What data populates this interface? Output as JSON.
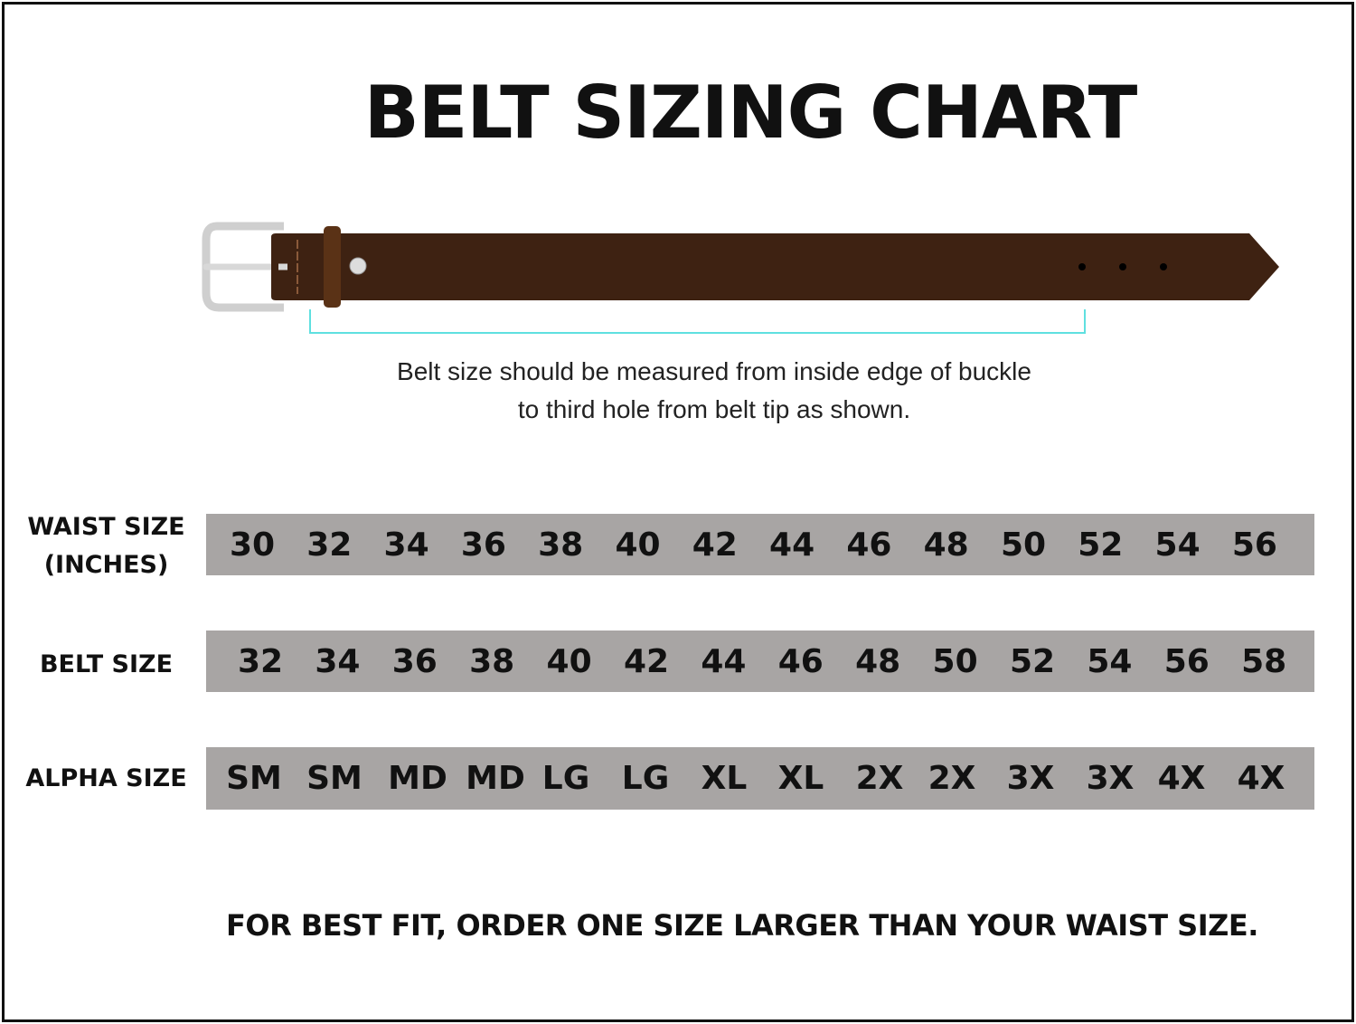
{
  "title": "BELT SIZING CHART",
  "note": [
    "Belt size should be measured from inside edge of buckle",
    "to third hole from belt tip as shown."
  ],
  "rows": [
    {
      "label": [
        "WAIST SIZE",
        "(INCHES)"
      ],
      "values": [
        "30",
        "32",
        "34",
        "36",
        "38",
        "40",
        "42",
        "44",
        "46",
        "48",
        "50",
        "52",
        "54",
        "56"
      ]
    },
    {
      "label": [
        "BELT SIZE"
      ],
      "values": [
        "32",
        "34",
        "36",
        "38",
        "40",
        "42",
        "44",
        "46",
        "48",
        "50",
        "52",
        "54",
        "56",
        "58"
      ]
    },
    {
      "label": [
        "ALPHA SIZE"
      ],
      "values": [
        "SM",
        "SM",
        "MD",
        "MD",
        "LG",
        "LG",
        "XL",
        "XL",
        "2X",
        "2X",
        "3X",
        "3X",
        "4X",
        "4X"
      ]
    }
  ],
  "footer": "FOR BEST FIT, ORDER ONE SIZE LARGER THAN YOUR WAIST SIZE.",
  "colors": {
    "band": "#a8a5a4",
    "belt": "#3e2212",
    "keeper": "#5a3216",
    "measure_line": "#5fe0e0",
    "buckle": "#d9d9d9"
  }
}
